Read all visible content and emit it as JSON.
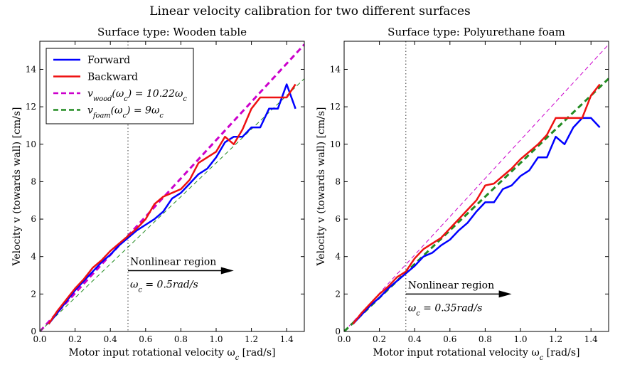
{
  "suptitle": "Linear velocity calibration for two different surfaces",
  "chart_data": [
    {
      "type": "line",
      "title": "Surface type: Wooden table",
      "xlabel": "Motor input rotational velocity ω_c [rad/s]",
      "ylabel": "Velocity v (towards wall) [cm/s]",
      "xlim": [
        0.0,
        1.5
      ],
      "ylim": [
        0,
        15.5
      ],
      "xticks": [
        0.0,
        0.2,
        0.4,
        0.6,
        0.8,
        1.0,
        1.2,
        1.4
      ],
      "yticks": [
        0,
        2,
        4,
        6,
        8,
        10,
        12,
        14
      ],
      "xtick_labels": [
        "0.0",
        "0.2",
        "0.4",
        "0.6",
        "0.8",
        "1.0",
        "1.2",
        "1.4"
      ],
      "ytick_labels": [
        "0",
        "2",
        "4",
        "6",
        "8",
        "10",
        "12",
        "14"
      ],
      "legend_position": "top-left",
      "series": [
        {
          "name": "Forward",
          "color": "#0000ff",
          "style": "solid",
          "x": [
            0.05,
            0.1,
            0.15,
            0.2,
            0.25,
            0.3,
            0.35,
            0.4,
            0.45,
            0.5,
            0.55,
            0.6,
            0.65,
            0.7,
            0.75,
            0.8,
            0.85,
            0.9,
            0.95,
            1.0,
            1.05,
            1.1,
            1.15,
            1.2,
            1.25,
            1.3,
            1.35,
            1.4,
            1.45
          ],
          "y": [
            0.4,
            1.0,
            1.6,
            2.2,
            2.7,
            3.2,
            3.7,
            4.1,
            4.6,
            5.0,
            5.4,
            5.7,
            6.0,
            6.4,
            7.1,
            7.4,
            7.9,
            8.4,
            8.7,
            9.3,
            10.1,
            10.4,
            10.4,
            10.9,
            10.9,
            11.9,
            11.9,
            13.2,
            11.9
          ]
        },
        {
          "name": "Backward",
          "color": "#ee1111",
          "style": "solid",
          "x": [
            0.05,
            0.1,
            0.15,
            0.2,
            0.25,
            0.3,
            0.35,
            0.4,
            0.45,
            0.5,
            0.55,
            0.6,
            0.65,
            0.7,
            0.75,
            0.8,
            0.85,
            0.9,
            0.95,
            1.0,
            1.05,
            1.1,
            1.15,
            1.2,
            1.25,
            1.3,
            1.35,
            1.4,
            1.45
          ],
          "y": [
            0.4,
            1.1,
            1.7,
            2.3,
            2.8,
            3.4,
            3.8,
            4.3,
            4.7,
            5.1,
            5.5,
            6.0,
            6.8,
            7.2,
            7.4,
            7.6,
            8.1,
            9.0,
            9.3,
            9.6,
            10.4,
            10.0,
            10.8,
            11.9,
            12.5,
            12.5,
            12.5,
            12.5,
            13.2
          ]
        },
        {
          "name": "v_wood(ω_c) = 10.22ω_c",
          "color": "#cc00cc",
          "style": "dashed",
          "width": 3,
          "x": [
            0.0,
            1.5
          ],
          "y": [
            0.0,
            15.33
          ]
        },
        {
          "name": "v_foam(ω_c) = 9ω_c",
          "color": "#228b22",
          "style": "dashed",
          "width": 1,
          "x": [
            0.0,
            1.5
          ],
          "y": [
            0.0,
            13.5
          ]
        }
      ],
      "legend": [
        "Forward",
        "Backward",
        "v_wood(ω_c) = 10.22ω_c",
        "v_foam(ω_c) = 9ω_c"
      ],
      "vline": 0.5,
      "annotation": {
        "text": "Nonlinear region",
        "formula": "ω_c = 0.5rad/s",
        "arrow_from": [
          0.5,
          3.25
        ],
        "arrow_to": [
          1.1,
          3.25
        ]
      }
    },
    {
      "type": "line",
      "title": "Surface type: Polyurethane foam",
      "xlabel": "Motor input rotational velocity ω_c [rad/s]",
      "ylabel": "Velocity v (towards wall) [cm/s]",
      "xlim": [
        0.0,
        1.5
      ],
      "ylim": [
        0,
        15.5
      ],
      "xticks": [
        0.0,
        0.2,
        0.4,
        0.6,
        0.8,
        1.0,
        1.2,
        1.4
      ],
      "yticks": [
        0,
        2,
        4,
        6,
        8,
        10,
        12,
        14
      ],
      "xtick_labels": [
        "0.0",
        "0.2",
        "0.4",
        "0.6",
        "0.8",
        "1.0",
        "1.2",
        "1.4"
      ],
      "ytick_labels": [
        "0",
        "2",
        "4",
        "6",
        "8",
        "10",
        "12",
        "14"
      ],
      "series": [
        {
          "name": "Forward",
          "color": "#0000ff",
          "style": "solid",
          "x": [
            0.05,
            0.1,
            0.15,
            0.2,
            0.25,
            0.3,
            0.35,
            0.4,
            0.45,
            0.5,
            0.55,
            0.6,
            0.65,
            0.7,
            0.75,
            0.8,
            0.85,
            0.9,
            0.95,
            1.0,
            1.05,
            1.1,
            1.15,
            1.2,
            1.25,
            1.3,
            1.35,
            1.4,
            1.45
          ],
          "y": [
            0.4,
            0.9,
            1.4,
            1.8,
            2.3,
            2.7,
            3.1,
            3.5,
            4.0,
            4.2,
            4.6,
            4.9,
            5.4,
            5.8,
            6.4,
            6.9,
            6.9,
            7.6,
            7.8,
            8.3,
            8.6,
            9.3,
            9.3,
            10.4,
            10.0,
            10.9,
            11.4,
            11.4,
            10.9
          ]
        },
        {
          "name": "Backward",
          "color": "#ee1111",
          "style": "solid",
          "x": [
            0.05,
            0.1,
            0.15,
            0.2,
            0.25,
            0.3,
            0.35,
            0.4,
            0.45,
            0.5,
            0.55,
            0.6,
            0.65,
            0.7,
            0.75,
            0.8,
            0.85,
            0.9,
            0.95,
            1.0,
            1.05,
            1.1,
            1.15,
            1.2,
            1.25,
            1.3,
            1.35,
            1.4,
            1.45
          ],
          "y": [
            0.4,
            1.0,
            1.5,
            2.0,
            2.4,
            2.9,
            3.2,
            3.9,
            4.4,
            4.7,
            5.0,
            5.5,
            6.0,
            6.5,
            7.0,
            7.8,
            7.9,
            8.3,
            8.7,
            9.2,
            9.6,
            10.0,
            10.5,
            11.4,
            11.4,
            11.4,
            11.4,
            12.6,
            13.2
          ]
        },
        {
          "name": "v_wood(ω_c) = 10.22ω_c",
          "color": "#cc00cc",
          "style": "dashed",
          "width": 1,
          "x": [
            0.0,
            1.5
          ],
          "y": [
            0.0,
            15.33
          ]
        },
        {
          "name": "v_foam(ω_c) = 9ω_c",
          "color": "#228b22",
          "style": "dashed",
          "width": 3,
          "x": [
            0.0,
            1.5
          ],
          "y": [
            0.0,
            13.5
          ]
        }
      ],
      "vline": 0.35,
      "annotation": {
        "text": "Nonlinear region",
        "formula": "ω_c = 0.35rad/s",
        "arrow_from": [
          0.35,
          2.0
        ],
        "arrow_to": [
          0.95,
          2.0
        ]
      }
    }
  ]
}
